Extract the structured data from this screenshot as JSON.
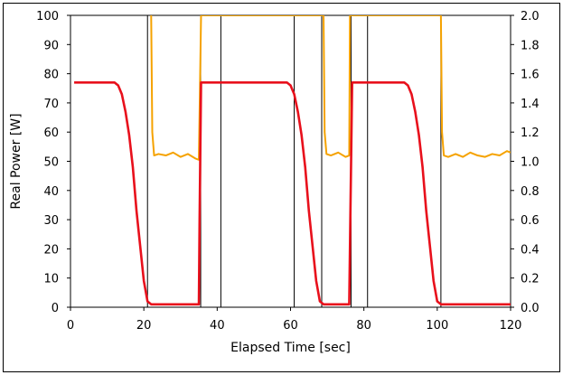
{
  "chart_data": {
    "type": "line",
    "title": "",
    "xlabel": "Elapsed Time [sec]",
    "ylabel": "Real Power [W]",
    "y2label": "",
    "xlim": [
      0,
      120
    ],
    "ylim": [
      0,
      100
    ],
    "y2lim": [
      0,
      2.0
    ],
    "x_ticks": [
      "0",
      "20",
      "40",
      "60",
      "80",
      "100",
      "120"
    ],
    "y_ticks": [
      "0",
      "10",
      "20",
      "30",
      "40",
      "50",
      "60",
      "70",
      "80",
      "90",
      "100"
    ],
    "y2_ticks": [
      "0.0",
      "0.2",
      "0.4",
      "0.6",
      "0.8",
      "1.0",
      "1.2",
      "1.4",
      "1.6",
      "1.8",
      "2.0"
    ],
    "vertical_gridlines_x": [
      21,
      35.5,
      41,
      61,
      68.5,
      76.5,
      81,
      101
    ],
    "colors": {
      "primary": "#e8101c",
      "secondary": "#f5a200",
      "grid": "#000000"
    },
    "series": [
      {
        "axis": "left",
        "color": "#e8101c",
        "x": [
          1,
          12,
          13,
          14,
          15,
          16,
          17,
          18,
          19,
          20,
          21,
          22,
          35,
          35.2,
          35.6,
          36,
          59,
          60,
          61,
          62,
          63,
          64,
          65,
          66,
          67,
          68,
          69,
          76,
          76.3,
          76.8,
          77,
          91,
          92,
          93,
          94,
          95,
          96,
          97,
          98,
          99,
          100,
          101,
          102,
          120
        ],
        "y": [
          77,
          77,
          76,
          73,
          67,
          59,
          48,
          33,
          21,
          9,
          2,
          1,
          1,
          30,
          77,
          77,
          77,
          76,
          73,
          67,
          59,
          48,
          33,
          21,
          9,
          2,
          1,
          1,
          30,
          77,
          77,
          77,
          76,
          73,
          67,
          59,
          48,
          33,
          21,
          9,
          2,
          1,
          1,
          1
        ]
      },
      {
        "axis": "right",
        "color": "#f5a200",
        "x": [
          22,
          22.3,
          22.8,
          24,
          26,
          28,
          30,
          32,
          34,
          35,
          35.3,
          35.6,
          69,
          69.3,
          69.8,
          71,
          73,
          75,
          76,
          76.2,
          101,
          101.3,
          101.8,
          103,
          105,
          107,
          109,
          111,
          113,
          115,
          117,
          119,
          120
        ],
        "y": [
          2.0,
          1.2,
          1.04,
          1.05,
          1.04,
          1.06,
          1.03,
          1.05,
          1.02,
          1.01,
          1.5,
          2.0,
          2.0,
          1.2,
          1.05,
          1.04,
          1.06,
          1.03,
          1.04,
          2.0,
          2.0,
          1.2,
          1.04,
          1.03,
          1.05,
          1.03,
          1.06,
          1.04,
          1.03,
          1.05,
          1.04,
          1.07,
          1.06
        ]
      }
    ]
  }
}
